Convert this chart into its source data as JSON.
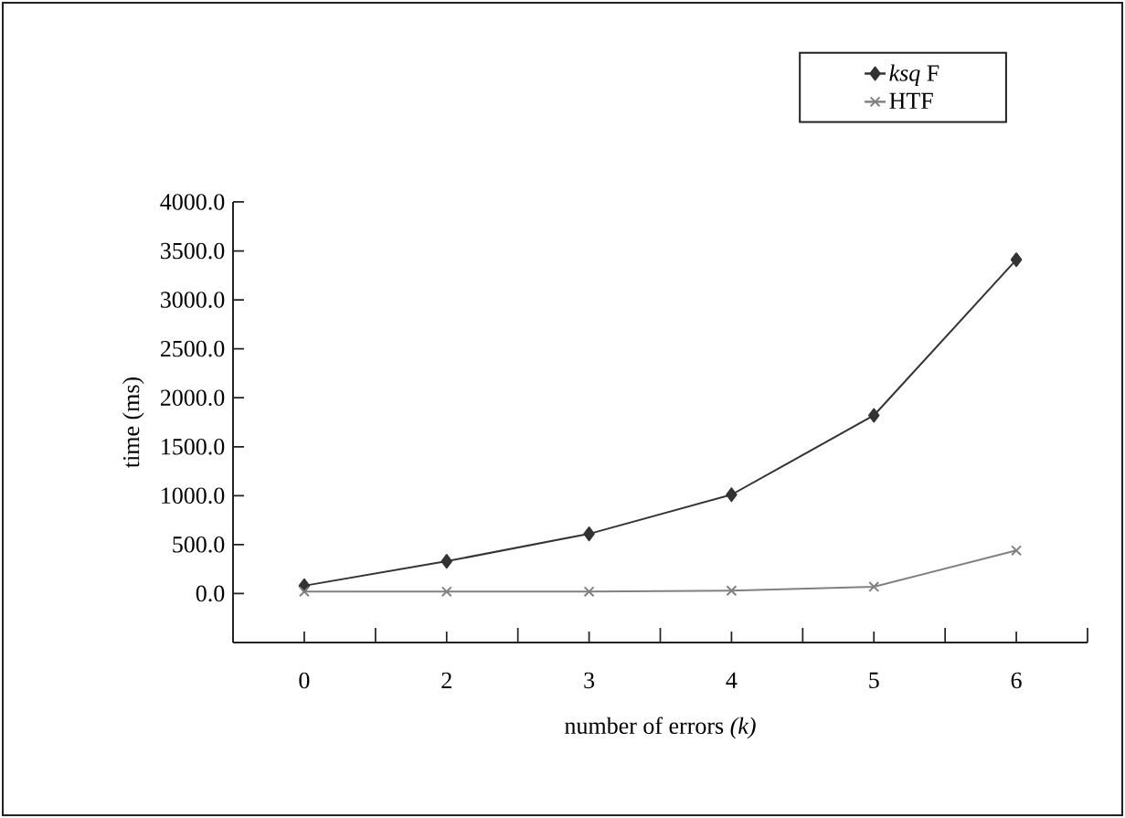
{
  "chart_data": {
    "type": "line",
    "xlabel": "number of errors  *(k)*",
    "ylabel": "time (ms)",
    "categories": [
      "0",
      "2",
      "3",
      "4",
      "5",
      "6"
    ],
    "series": [
      {
        "name": "*ksq* F",
        "color": "#333333",
        "marker": "diamond",
        "values": [
          80,
          330,
          610,
          1010,
          1820,
          3410
        ]
      },
      {
        "name": "HTF",
        "color": "#808080",
        "marker": "cross",
        "values": [
          20,
          20,
          20,
          30,
          70,
          440
        ]
      }
    ],
    "ylim": [
      -500,
      4000
    ],
    "yticks": [
      {
        "value": -500,
        "label": null
      },
      {
        "value": 0,
        "label": "0.0"
      },
      {
        "value": 500,
        "label": "500.0"
      },
      {
        "value": 1000,
        "label": "1000.0"
      },
      {
        "value": 1500,
        "label": "1500.0"
      },
      {
        "value": 2000,
        "label": "2000.0"
      },
      {
        "value": 2500,
        "label": "2500.0"
      },
      {
        "value": 3000,
        "label": "3000.0"
      },
      {
        "value": 3500,
        "label": "3500.0"
      },
      {
        "value": 4000,
        "label": "4000.0"
      }
    ],
    "grid": false,
    "legend": "top right",
    "line_style": "solid"
  }
}
